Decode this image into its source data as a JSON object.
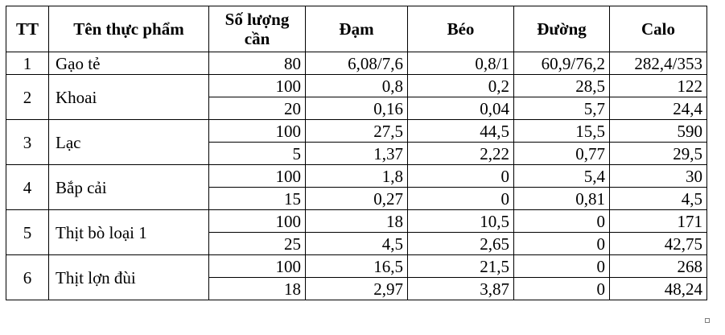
{
  "table": {
    "headers": [
      "TT",
      "Tên thực phẩm",
      "Số lượng cần",
      "Đạm",
      "Béo",
      "Đường",
      "Calo"
    ],
    "groups": [
      {
        "tt": "1",
        "name": "Gạo tẻ",
        "rows": [
          {
            "qty": "80",
            "dam": "6,08/7,6",
            "beo": "0,8/1",
            "duong": "60,9/76,2",
            "calo": "282,4/353"
          }
        ]
      },
      {
        "tt": "2",
        "name": "Khoai",
        "rows": [
          {
            "qty": "100",
            "dam": "0,8",
            "beo": "0,2",
            "duong": "28,5",
            "calo": "122"
          },
          {
            "qty": "20",
            "dam": "0,16",
            "beo": "0,04",
            "duong": "5,7",
            "calo": "24,4"
          }
        ]
      },
      {
        "tt": "3",
        "name": "Lạc",
        "rows": [
          {
            "qty": "100",
            "dam": "27,5",
            "beo": "44,5",
            "duong": "15,5",
            "calo": "590"
          },
          {
            "qty": "5",
            "dam": "1,37",
            "beo": "2,22",
            "duong": "0,77",
            "calo": "29,5"
          }
        ]
      },
      {
        "tt": "4",
        "name": "Bắp cải",
        "rows": [
          {
            "qty": "100",
            "dam": "1,8",
            "beo": "0",
            "duong": "5,4",
            "calo": "30"
          },
          {
            "qty": "15",
            "dam": "0,27",
            "beo": "0",
            "duong": "0,81",
            "calo": "4,5"
          }
        ]
      },
      {
        "tt": "5",
        "name": "Thịt bò loại 1",
        "rows": [
          {
            "qty": "100",
            "dam": "18",
            "beo": "10,5",
            "duong": "0",
            "calo": "171"
          },
          {
            "qty": "25",
            "dam": "4,5",
            "beo": "2,65",
            "duong": "0",
            "calo": "42,75"
          }
        ]
      },
      {
        "tt": "6",
        "name": "Thịt lợn đùi",
        "rows": [
          {
            "qty": "100",
            "dam": "16,5",
            "beo": "21,5",
            "duong": "0",
            "calo": "268"
          },
          {
            "qty": "18",
            "dam": "2,97",
            "beo": "3,87",
            "duong": "0",
            "calo": "48,24"
          }
        ]
      }
    ]
  }
}
